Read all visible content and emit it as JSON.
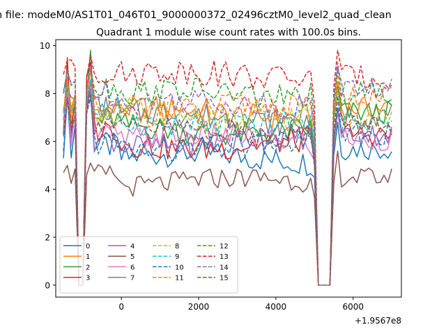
{
  "chart_data": {
    "type": "line",
    "suptitle": "n file: modeM0/AS1T01_046T01_9000000372_02496cztM0_level2_quad_clean",
    "title": "Quadrant 1 module wise count rates with 100.0s bins.",
    "xlabel": "",
    "ylabel": "",
    "x_offset_label": "+1.9567e8",
    "xlim": [
      -1700,
      7250
    ],
    "ylim": [
      -0.5,
      10.25
    ],
    "x_ticks": [
      0,
      2000,
      4000,
      6000
    ],
    "x_tick_labels": [
      "0",
      "2000",
      "4000",
      "6000"
    ],
    "y_ticks": [
      0,
      2,
      4,
      6,
      8,
      10
    ],
    "y_tick_labels": [
      "0",
      "2",
      "4",
      "6",
      "8",
      "10"
    ],
    "grid": false,
    "legend_position": "lower-left",
    "legend_columns": 4,
    "x_range": [
      -1500,
      7000
    ],
    "bin_width": 100,
    "dropouts": [
      {
        "start": -1100,
        "end": -1000,
        "value": 0
      },
      {
        "start": 5100,
        "end": 5400,
        "value": 0
      }
    ],
    "series": [
      {
        "name": "0",
        "color": "#1f77b4",
        "dash": "solid",
        "level": 5.3,
        "pre": 5.8,
        "post": 5.7,
        "first": 5.3,
        "peak1": 8.0,
        "peak2": 8.2
      },
      {
        "name": "1",
        "color": "#ff7f0e",
        "dash": "solid",
        "level": 7.2,
        "pre": 7.3,
        "post": 7.4,
        "first": 7.2,
        "peak1": 8.7,
        "peak2": 9.0
      },
      {
        "name": "2",
        "color": "#2ca02c",
        "dash": "solid",
        "level": 6.5,
        "pre": 6.9,
        "post": 7.2,
        "first": 6.4,
        "peak1": 8.5,
        "peak2": 9.8
      },
      {
        "name": "3",
        "color": "#d62728",
        "dash": "solid",
        "level": 5.9,
        "pre": 6.5,
        "post": 6.3,
        "first": 6.4,
        "peak1": 9.5,
        "peak2": 9.3
      },
      {
        "name": "4",
        "color": "#9467bd",
        "dash": "solid",
        "level": 6.0,
        "pre": 6.1,
        "post": 6.3,
        "first": 6.2,
        "peak1": 8.2,
        "peak2": 8.2
      },
      {
        "name": "5",
        "color": "#8c564b",
        "dash": "solid",
        "level": 4.3,
        "pre": 4.6,
        "post": 4.5,
        "first": 4.7,
        "peak1": 5.0,
        "peak2": 5.1
      },
      {
        "name": "6",
        "color": "#e377c2",
        "dash": "solid",
        "level": 6.1,
        "pre": 6.3,
        "post": 6.1,
        "first": 6.3,
        "peak1": 8.3,
        "peak2": 8.5
      },
      {
        "name": "7",
        "color": "#7f7f7f",
        "dash": "solid",
        "level": 7.0,
        "pre": 7.4,
        "post": 7.1,
        "first": 7.3,
        "peak1": 8.2,
        "peak2": 8.5
      },
      {
        "name": "8",
        "color": "#bcbd22",
        "dash": "dashed",
        "level": 7.1,
        "pre": 7.2,
        "post": 7.1,
        "first": 7.2,
        "peak1": 8.6,
        "peak2": 8.6
      },
      {
        "name": "9",
        "color": "#17becf",
        "dash": "dashed",
        "level": 6.8,
        "pre": 7.3,
        "post": 6.8,
        "first": 6.9,
        "peak1": 8.5,
        "peak2": 8.6
      },
      {
        "name": "10",
        "color": "#1f77b4",
        "dash": "dashed",
        "level": 5.8,
        "pre": 6.0,
        "post": 6.3,
        "first": 5.6,
        "peak1": 7.8,
        "peak2": 7.8
      },
      {
        "name": "11",
        "color": "#ff7f0e",
        "dash": "dashed",
        "level": 7.3,
        "pre": 7.3,
        "post": 7.8,
        "first": 7.2,
        "peak1": 8.7,
        "peak2": 8.9
      },
      {
        "name": "12",
        "color": "#2ca02c",
        "dash": "dashed",
        "level": 8.0,
        "pre": 8.3,
        "post": 8.0,
        "first": 8.0,
        "peak1": 9.0,
        "peak2": 9.1
      },
      {
        "name": "13",
        "color": "#d62728",
        "dash": "dashed",
        "level": 8.8,
        "pre": 8.9,
        "post": 8.7,
        "first": 8.8,
        "peak1": 9.4,
        "peak2": 9.6
      },
      {
        "name": "14",
        "color": "#9467bd",
        "dash": "dashed",
        "level": 7.6,
        "pre": 8.0,
        "post": 8.2,
        "first": 8.1,
        "peak1": 8.9,
        "peak2": 9.1
      },
      {
        "name": "15",
        "color": "#8c564b",
        "dash": "dashed",
        "level": 6.4,
        "pre": 6.8,
        "post": 6.7,
        "first": 6.3,
        "peak1": 7.8,
        "peak2": 8.0
      }
    ]
  }
}
